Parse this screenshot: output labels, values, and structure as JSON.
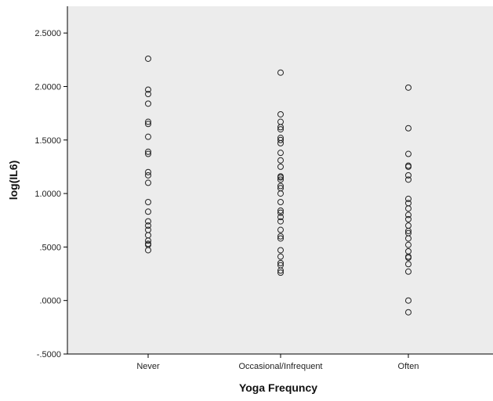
{
  "colors": {
    "plot_background": "#ececec",
    "marker_stroke": "#222222",
    "axis": "#000000",
    "page_background": "#ffffff"
  },
  "chart_data": {
    "type": "scatter",
    "title": "",
    "xlabel": "Yoga Frequncy",
    "ylabel": "log(IL6)",
    "categories": [
      "Never",
      "Occasional/Infrequent",
      "Often"
    ],
    "ylim": [
      -0.5,
      2.75
    ],
    "y_ticks": [
      -0.5,
      0.0,
      0.5,
      1.0,
      1.5,
      2.0,
      2.5
    ],
    "y_tick_labels": [
      "-.5000",
      ".0000",
      ".5000",
      "1.0000",
      "1.5000",
      "2.0000",
      "2.5000"
    ],
    "grid": false,
    "marker": "hollow-circle",
    "series": [
      {
        "category": "Never",
        "values": [
          2.26,
          1.97,
          1.93,
          1.84,
          1.67,
          1.65,
          1.53,
          1.39,
          1.37,
          1.2,
          1.17,
          1.1,
          0.92,
          0.83,
          0.74,
          0.7,
          0.66,
          0.61,
          0.56,
          0.53,
          0.52,
          0.47
        ]
      },
      {
        "category": "Occasional/Infrequent",
        "values": [
          2.13,
          1.74,
          1.67,
          1.62,
          1.6,
          1.52,
          1.5,
          1.47,
          1.38,
          1.31,
          1.25,
          1.16,
          1.15,
          1.13,
          1.07,
          1.05,
          1.0,
          0.92,
          0.84,
          0.82,
          0.78,
          0.74,
          0.66,
          0.6,
          0.58,
          0.47,
          0.41,
          0.35,
          0.33,
          0.28,
          0.26
        ]
      },
      {
        "category": "Often",
        "values": [
          1.99,
          1.61,
          1.37,
          1.26,
          1.25,
          1.17,
          1.13,
          0.95,
          0.91,
          0.86,
          0.8,
          0.76,
          0.7,
          0.65,
          0.63,
          0.58,
          0.52,
          0.46,
          0.41,
          0.4,
          0.34,
          0.27,
          0.0,
          -0.11
        ]
      }
    ]
  }
}
